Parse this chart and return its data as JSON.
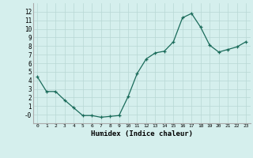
{
  "x": [
    0,
    1,
    2,
    3,
    4,
    5,
    6,
    7,
    8,
    9,
    10,
    11,
    12,
    13,
    14,
    15,
    16,
    17,
    18,
    19,
    20,
    21,
    22,
    23
  ],
  "y": [
    4.4,
    2.7,
    2.7,
    1.7,
    0.8,
    -0.1,
    -0.1,
    -0.3,
    -0.2,
    -0.1,
    2.1,
    4.8,
    6.5,
    7.2,
    7.4,
    8.5,
    11.3,
    11.8,
    10.2,
    8.1,
    7.3,
    7.6,
    7.9,
    8.5
  ],
  "xlabel": "Humidex (Indice chaleur)",
  "ylabel": "",
  "xlim": [
    -0.5,
    23.5
  ],
  "ylim": [
    -1,
    13
  ],
  "yticks": [
    0,
    1,
    2,
    3,
    4,
    5,
    6,
    7,
    8,
    9,
    10,
    11,
    12
  ],
  "xticks": [
    0,
    1,
    2,
    3,
    4,
    5,
    6,
    7,
    8,
    9,
    10,
    11,
    12,
    13,
    14,
    15,
    16,
    17,
    18,
    19,
    20,
    21,
    22,
    23
  ],
  "xtick_labels": [
    "0",
    "1",
    "2",
    "3",
    "4",
    "5",
    "6",
    "7",
    "8",
    "9",
    "10",
    "11",
    "12",
    "13",
    "14",
    "15",
    "16",
    "17",
    "18",
    "19",
    "20",
    "21",
    "22",
    "23"
  ],
  "ytick_labels": [
    "-0",
    "1",
    "2",
    "3",
    "4",
    "5",
    "6",
    "7",
    "8",
    "9",
    "10",
    "11",
    "12"
  ],
  "line_color": "#1a6b5a",
  "bg_color": "#d5efed",
  "grid_color": "#b8d8d4",
  "marker": "+"
}
